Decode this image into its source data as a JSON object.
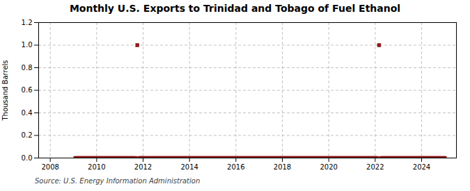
{
  "chart_data": {
    "type": "scatter",
    "title": "Monthly U.S. Exports to Trinidad and Tobago of Fuel Ethanol",
    "ylabel": "Thousand Barrels",
    "caption": "Source: U.S. Energy Information Administration",
    "color": "#8b1a1a",
    "marker": "square",
    "grid": true,
    "xlim": [
      2007.5,
      2025.5
    ],
    "xticks": [
      2008,
      2010,
      2012,
      2014,
      2016,
      2018,
      2020,
      2022,
      2024
    ],
    "ylim": [
      0.0,
      1.2
    ],
    "yticks": [
      {
        "value": 0.0,
        "label": "0.0"
      },
      0.2,
      0.4,
      0.6,
      0.8,
      {
        "value": 1.0,
        "label": "1.0"
      },
      1.2
    ],
    "x": [
      2009.083,
      2009.167,
      2009.25,
      2009.333,
      2009.417,
      2009.5,
      2009.583,
      2009.667,
      2009.75,
      2009.833,
      2009.917,
      2010.0,
      2010.083,
      2010.167,
      2010.25,
      2010.333,
      2010.417,
      2010.5,
      2010.583,
      2010.667,
      2010.75,
      2010.833,
      2010.917,
      2011.0,
      2011.083,
      2011.167,
      2011.25,
      2011.333,
      2011.417,
      2011.5,
      2011.583,
      2011.667,
      2011.75,
      2011.833,
      2011.917,
      2012.0,
      2012.083,
      2012.167,
      2012.25,
      2012.333,
      2012.417,
      2012.5,
      2012.583,
      2012.667,
      2012.75,
      2012.833,
      2012.917,
      2013.0,
      2013.083,
      2013.167,
      2013.25,
      2013.333,
      2013.417,
      2013.5,
      2013.583,
      2013.667,
      2013.75,
      2013.833,
      2013.917,
      2014.0,
      2014.083,
      2014.167,
      2014.25,
      2014.333,
      2014.417,
      2014.5,
      2014.583,
      2014.667,
      2014.75,
      2014.833,
      2014.917,
      2015.0,
      2015.083,
      2015.167,
      2015.25,
      2015.333,
      2015.417,
      2015.5,
      2015.583,
      2015.667,
      2015.75,
      2015.833,
      2015.917,
      2016.0,
      2016.083,
      2016.167,
      2016.25,
      2016.333,
      2016.417,
      2016.5,
      2016.583,
      2016.667,
      2016.75,
      2016.833,
      2016.917,
      2017.0,
      2017.083,
      2017.167,
      2017.25,
      2017.333,
      2017.417,
      2017.5,
      2017.583,
      2017.667,
      2017.75,
      2017.833,
      2017.917,
      2018.0,
      2018.083,
      2018.167,
      2018.25,
      2018.333,
      2018.417,
      2018.5,
      2018.583,
      2018.667,
      2018.75,
      2018.833,
      2018.917,
      2019.0,
      2019.083,
      2019.167,
      2019.25,
      2019.333,
      2019.417,
      2019.5,
      2019.583,
      2019.667,
      2019.75,
      2019.833,
      2019.917,
      2020.0,
      2020.083,
      2020.167,
      2020.25,
      2020.333,
      2020.417,
      2020.5,
      2020.583,
      2020.667,
      2020.75,
      2020.833,
      2020.917,
      2021.0,
      2021.083,
      2021.167,
      2021.25,
      2021.333,
      2021.417,
      2021.5,
      2021.583,
      2021.667,
      2021.75,
      2021.833,
      2021.917,
      2022.0,
      2022.083,
      2022.167,
      2022.25,
      2022.333,
      2022.417,
      2022.5,
      2022.583,
      2022.667,
      2022.75,
      2022.833,
      2022.917,
      2023.0,
      2023.083,
      2023.167,
      2023.25,
      2023.333,
      2023.417,
      2023.5,
      2023.583,
      2023.667,
      2023.75,
      2023.833,
      2023.917,
      2024.0,
      2024.083,
      2024.167,
      2024.25,
      2024.333,
      2024.417,
      2024.5,
      2024.583,
      2024.667,
      2024.75,
      2024.833,
      2024.917,
      2025.0
    ],
    "values": [
      0.0,
      0.0,
      0.0,
      0.0,
      0.0,
      0.0,
      0.0,
      0.0,
      0.0,
      0.0,
      0.0,
      0.0,
      0.0,
      0.0,
      0.0,
      0.0,
      0.0,
      0.0,
      0.0,
      0.0,
      0.0,
      0.0,
      0.0,
      0.0,
      0.0,
      0.0,
      0.0,
      0.0,
      0.0,
      0.0,
      0.0,
      0.0,
      1.0,
      0.0,
      0.0,
      0.0,
      0.0,
      0.0,
      0.0,
      0.0,
      0.0,
      0.0,
      0.0,
      0.0,
      0.0,
      0.0,
      0.0,
      0.0,
      0.0,
      0.0,
      0.0,
      0.0,
      0.0,
      0.0,
      0.0,
      0.0,
      0.0,
      0.0,
      0.0,
      0.0,
      0.0,
      0.0,
      0.0,
      0.0,
      0.0,
      0.0,
      0.0,
      0.0,
      0.0,
      0.0,
      0.0,
      0.0,
      0.0,
      0.0,
      0.0,
      0.0,
      0.0,
      0.0,
      0.0,
      0.0,
      0.0,
      0.0,
      0.0,
      0.0,
      0.0,
      0.0,
      0.0,
      0.0,
      0.0,
      0.0,
      0.0,
      0.0,
      0.0,
      0.0,
      0.0,
      0.0,
      0.0,
      0.0,
      0.0,
      0.0,
      0.0,
      0.0,
      0.0,
      0.0,
      0.0,
      0.0,
      0.0,
      0.0,
      0.0,
      0.0,
      0.0,
      0.0,
      0.0,
      0.0,
      0.0,
      0.0,
      0.0,
      0.0,
      0.0,
      0.0,
      0.0,
      0.0,
      0.0,
      0.0,
      0.0,
      0.0,
      0.0,
      0.0,
      0.0,
      0.0,
      0.0,
      0.0,
      0.0,
      0.0,
      0.0,
      0.0,
      0.0,
      0.0,
      0.0,
      0.0,
      0.0,
      0.0,
      0.0,
      0.0,
      0.0,
      0.0,
      0.0,
      0.0,
      0.0,
      0.0,
      0.0,
      0.0,
      0.0,
      0.0,
      0.0,
      0.0,
      0.0,
      1.0,
      0.0,
      0.0,
      0.0,
      0.0,
      0.0,
      0.0,
      0.0,
      0.0,
      0.0,
      0.0,
      0.0,
      0.0,
      0.0,
      0.0,
      0.0,
      0.0,
      0.0,
      0.0,
      0.0,
      0.0,
      0.0,
      0.0,
      0.0,
      0.0,
      0.0,
      0.0,
      0.0,
      0.0,
      0.0,
      0.0,
      0.0,
      0.0,
      0.0,
      0.0
    ]
  }
}
